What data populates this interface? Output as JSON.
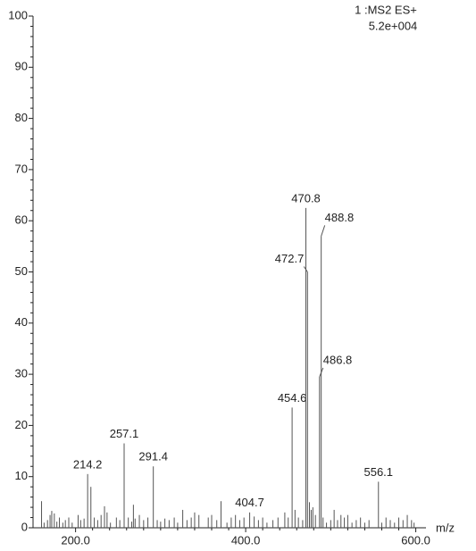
{
  "chart_data": {
    "type": "spectrum",
    "header": "1 :MS2  ES+",
    "intensity": "5.2e+004",
    "x_label": "m/z",
    "color": "#555555",
    "xlim": [
      150,
      612
    ],
    "ylim": [
      0,
      100
    ],
    "xticks": [
      {
        "value": 200,
        "label": "200.0"
      },
      {
        "value": 400,
        "label": "400.0"
      },
      {
        "value": 600,
        "label": "600.0"
      }
    ],
    "yticks": [
      0,
      10,
      20,
      30,
      40,
      50,
      60,
      70,
      80,
      90,
      100
    ],
    "labeled": {
      "x": [
        214.2,
        257.1,
        291.4,
        404.7,
        454.6,
        470.8,
        472.7,
        486.8,
        488.8,
        556.1
      ],
      "values": [
        10.5,
        16.5,
        12,
        3,
        23.5,
        62.5,
        50,
        29.5,
        57,
        9
      ]
    },
    "unlabeled": {
      "x": [
        160,
        163,
        167,
        170,
        172,
        175,
        178,
        181,
        185,
        188,
        192,
        196,
        203,
        206,
        210,
        218,
        222,
        226,
        230,
        234,
        237,
        241,
        248,
        252,
        262,
        266,
        268,
        270,
        275,
        280,
        285,
        296,
        300,
        305,
        310,
        316,
        320,
        326,
        331,
        336,
        340,
        345,
        356,
        360,
        366,
        371,
        378,
        383,
        388,
        393,
        398,
        410,
        415,
        420,
        425,
        432,
        438,
        446,
        450,
        458,
        462,
        467,
        475,
        477,
        479,
        482,
        491,
        495,
        500,
        504,
        508,
        512,
        516,
        520,
        525,
        530,
        535,
        540,
        545,
        560,
        565,
        570,
        575,
        580,
        585,
        590,
        595,
        598
      ],
      "values": [
        5.2,
        1,
        1.5,
        2.5,
        3.3,
        2.8,
        1.2,
        2,
        1,
        1.5,
        2,
        1,
        2.5,
        1.5,
        1.8,
        8,
        2,
        1.5,
        2.5,
        4.2,
        3,
        1,
        2,
        1.5,
        2,
        1.2,
        4.5,
        1.8,
        2.5,
        1.5,
        2,
        1.5,
        1.2,
        1.8,
        1.5,
        2,
        1,
        3.5,
        1.5,
        2,
        3,
        2.5,
        2,
        2.5,
        1.5,
        5.2,
        1,
        2,
        2.5,
        1.5,
        2,
        2.2,
        1.5,
        2,
        1,
        1.5,
        2,
        3,
        2,
        3.5,
        2,
        1.5,
        5,
        3.5,
        4,
        2.5,
        2,
        1,
        1.5,
        3.5,
        1.5,
        2.5,
        2,
        2.5,
        1,
        1.5,
        2,
        1,
        1.5,
        1,
        2,
        1.5,
        1,
        2,
        1.5,
        2.5,
        1.5,
        1
      ]
    }
  }
}
